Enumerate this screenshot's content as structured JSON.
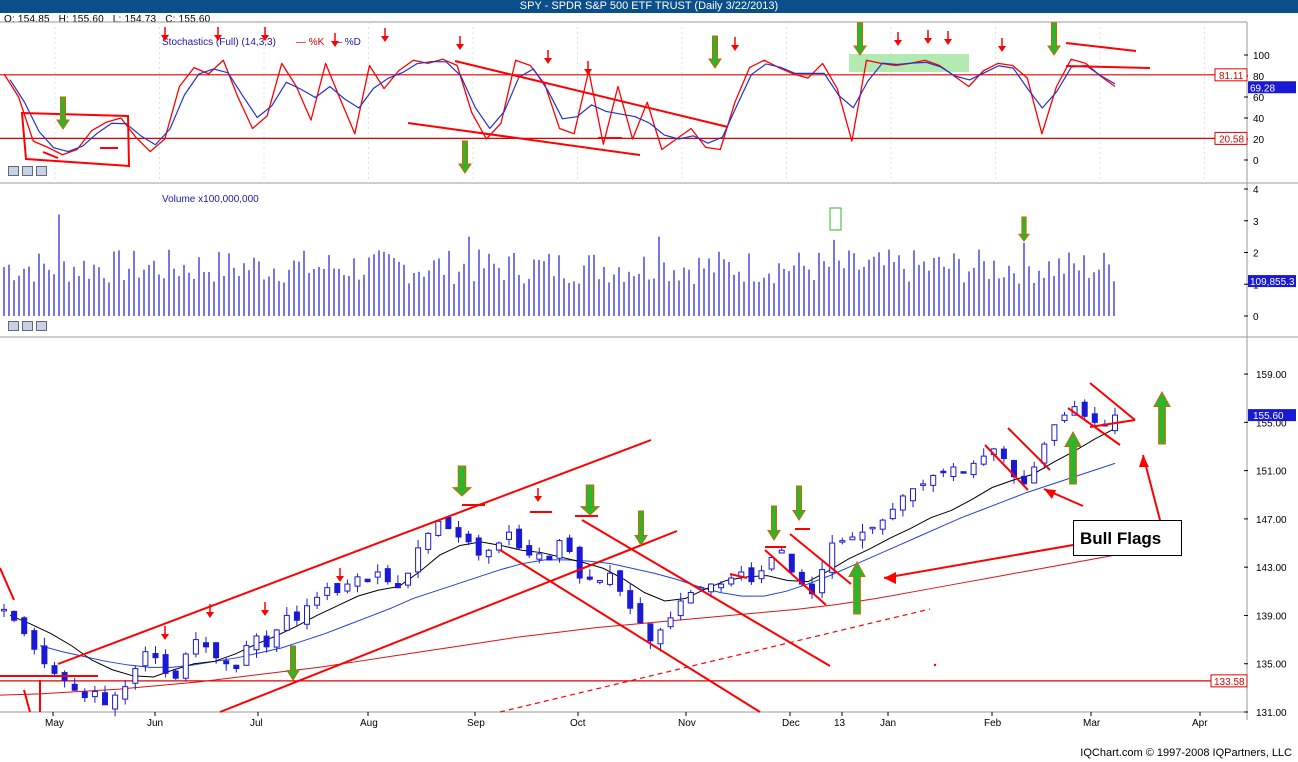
{
  "title": "SPY - SPDR S&P 500 ETF TRUST (Daily 3/22/2013)",
  "ohlc": {
    "open": "O: 154.85",
    "high": "H: 155.60",
    "low": "L: 154.73",
    "close": "C: 155.60"
  },
  "footer": "IQChart.com © 1997-2008 IQPartners, LLC",
  "annotation": "Bull Flags",
  "colors": {
    "title_bg": "#0b4f8a",
    "price": "#1a1ad6",
    "k_line": "#ff0000",
    "d_line": "#2233cc",
    "ma_fast": "#000000",
    "ma_mid": "#2040e0",
    "ma_slow": "#dd1111",
    "annotation_red": "#ff0000",
    "arrow_green": "#2db52d"
  },
  "chart_data": [
    {
      "type": "line",
      "name": "stochastics",
      "title": "Stochastics (Full) (14,3,3)",
      "legend": [
        "%K",
        "%D"
      ],
      "y_ticks": [
        "100",
        "80",
        "60",
        "40",
        "20",
        "0"
      ],
      "ylim": [
        0,
        100
      ],
      "levels": {
        "upper": "81.11",
        "lower": "20.58",
        "current": "69.28"
      },
      "k_values": [
        82,
        60,
        18,
        12,
        5,
        10,
        28,
        36,
        40,
        22,
        8,
        20,
        70,
        88,
        82,
        95,
        60,
        30,
        42,
        92,
        70,
        38,
        92,
        58,
        25,
        90,
        68,
        85,
        95,
        92,
        96,
        90,
        45,
        20,
        35,
        95,
        90,
        72,
        30,
        25,
        85,
        15,
        70,
        20,
        55,
        10,
        20,
        30,
        12,
        10,
        55,
        88,
        95,
        88,
        82,
        78,
        92,
        68,
        18,
        95,
        92,
        90,
        92,
        95,
        90,
        80,
        70,
        85,
        92,
        90,
        78,
        25,
        70,
        96,
        92,
        80,
        70
      ]
    },
    {
      "type": "bar",
      "name": "volume",
      "title": "Volume x100,000,000",
      "y_ticks": [
        "4",
        "3",
        "2",
        "1",
        "0"
      ],
      "ylim": [
        0,
        4
      ],
      "current": "109,855.3"
    },
    {
      "type": "candlestick",
      "name": "price",
      "x_ticks": [
        "May",
        "Jun",
        "Jul",
        "Aug",
        "Sep",
        "Oct",
        "Nov",
        "Dec",
        "13",
        "Jan",
        "Feb",
        "Mar",
        "Apr"
      ],
      "y_ticks": [
        "159.00",
        "155.00",
        "151.00",
        "147.00",
        "143.00",
        "139.00",
        "135.00",
        "131.00"
      ],
      "ylim": [
        131,
        160
      ],
      "levels": {
        "last": "155.60",
        "support": "133.58"
      },
      "close_path": [
        139.5,
        138.6,
        137.5,
        136.2,
        135.0,
        134.2,
        133.6,
        132.8,
        132.2,
        132.7,
        131.6,
        132.4,
        133.1,
        134.6,
        136.0,
        135.5,
        134.2,
        133.8,
        135.8,
        137.0,
        136.4,
        135.5,
        135.0,
        134.6,
        136.5,
        137.3,
        136.4,
        137.8,
        139.0,
        138.6,
        139.8,
        140.5,
        141.3,
        140.9,
        141.6,
        142.2,
        141.8,
        142.6,
        141.8,
        141.3,
        142.5,
        144.6,
        145.8,
        146.8,
        146.2,
        145.5,
        145.1,
        144.0,
        144.4,
        145.0,
        145.9,
        144.6,
        144.0,
        144.1,
        143.6,
        145.2,
        144.3,
        142.1,
        142.0,
        141.9,
        142.5,
        141.0,
        139.6,
        138.4,
        136.9,
        137.8,
        138.8,
        140.2,
        140.9,
        141.3,
        141.6,
        141.6,
        142.1,
        142.6,
        141.8,
        142.7,
        143.8,
        144.4,
        142.6,
        141.6,
        140.8,
        142.8,
        145.0,
        145.2,
        145.5,
        145.9,
        146.3,
        146.9,
        147.8,
        148.9,
        149.5,
        149.9,
        150.6,
        150.9,
        151.3,
        150.8,
        151.6,
        152.2,
        152.8,
        152.0,
        150.5,
        149.9,
        151.3,
        153.2,
        154.8,
        155.6,
        156.3,
        155.5,
        155.0,
        154.7,
        155.6
      ],
      "ma_fast_path": [
        139.0,
        138.3,
        137.5,
        136.5,
        135.3,
        134.5,
        134.0,
        133.9,
        134.5,
        135.0,
        135.2,
        135.8,
        136.6,
        137.3,
        138.1,
        139.0,
        139.8,
        140.6,
        141.1,
        141.4,
        142.6,
        144.0,
        144.8,
        145.1,
        144.8,
        144.4,
        144.2,
        143.8,
        143.4,
        142.9,
        142.0,
        140.9,
        140.2,
        140.4,
        141.2,
        141.9,
        142.2,
        142.3,
        141.9,
        141.8,
        142.7,
        143.7,
        144.5,
        145.4,
        146.2,
        147.1,
        147.7,
        148.6,
        149.6,
        150.2,
        150.7,
        151.7,
        152.6,
        153.6,
        154.5
      ],
      "ma_mid_path": [
        136.5,
        136.0,
        135.6,
        135.2,
        134.9,
        134.7,
        134.7,
        134.9,
        135.2,
        135.5,
        135.9,
        136.3,
        136.9,
        137.5,
        138.2,
        138.9,
        139.6,
        140.4,
        141.0,
        141.6,
        142.2,
        142.8,
        143.3,
        143.6,
        143.6,
        143.5,
        143.3,
        142.9,
        142.5,
        142.0,
        141.4,
        140.9,
        140.6,
        140.6,
        141.0,
        141.6,
        142.3,
        143.1,
        143.9,
        144.7,
        145.5,
        146.3,
        147.1,
        147.8,
        148.5,
        149.2,
        149.8,
        150.4,
        151.0,
        151.6
      ],
      "ma_slow_path": [
        132.4,
        132.5,
        132.7,
        132.9,
        133.2,
        133.5,
        133.9,
        134.3,
        134.7,
        135.2,
        135.7,
        136.2,
        136.7,
        137.2,
        137.6,
        138.0,
        138.3,
        138.6,
        138.9,
        139.2,
        139.5,
        139.9,
        140.4,
        141.0,
        141.6,
        142.2,
        142.8,
        143.4,
        144.0
      ]
    }
  ]
}
